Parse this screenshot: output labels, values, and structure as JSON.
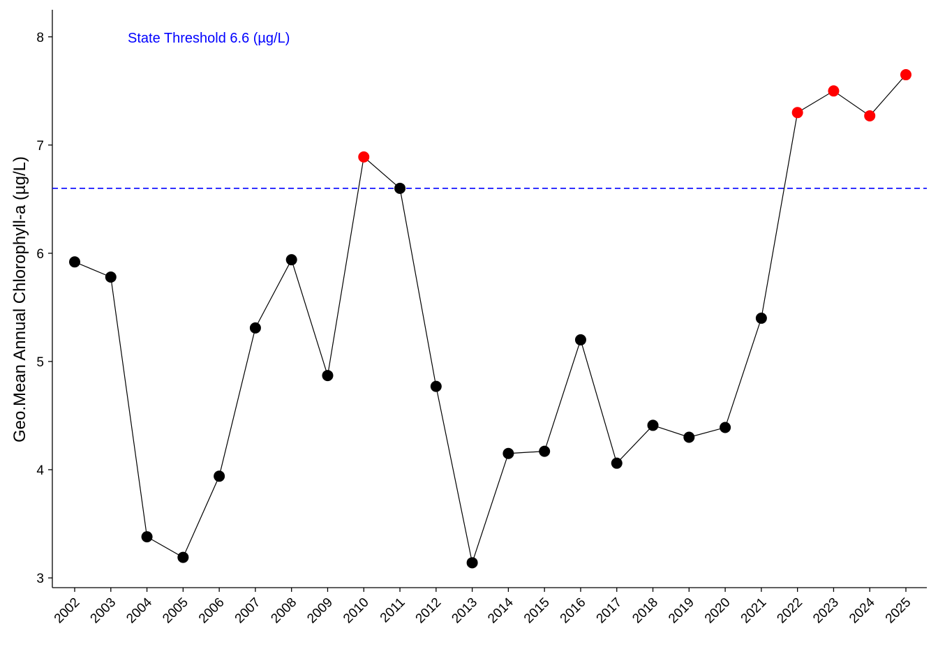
{
  "chart_data": {
    "type": "line",
    "title": "",
    "xlabel": "",
    "ylabel": "Geo.Mean Annual Chlorophyll-a (µg/L)",
    "categories": [
      "2002",
      "2003",
      "2004",
      "2005",
      "2006",
      "2007",
      "2008",
      "2009",
      "2010",
      "2011",
      "2012",
      "2013",
      "2014",
      "2015",
      "2016",
      "2017",
      "2018",
      "2019",
      "2020",
      "2021",
      "2022",
      "2023",
      "2024",
      "2025"
    ],
    "values": [
      5.92,
      5.78,
      3.38,
      3.19,
      3.94,
      5.31,
      5.94,
      4.87,
      6.89,
      6.6,
      4.77,
      3.14,
      4.15,
      4.17,
      5.2,
      4.06,
      4.41,
      4.3,
      4.39,
      5.4,
      7.3,
      7.5,
      7.27,
      7.65
    ],
    "ylim": [
      2.91,
      8.25
    ],
    "yticks": [
      3,
      4,
      5,
      6,
      7,
      8
    ],
    "grid": false,
    "threshold": {
      "value": 6.6,
      "label": "State Threshold 6.6 (µg/L)",
      "color": "#0000FF"
    },
    "colors": {
      "normal": "#000000",
      "exceed": "#FF0000",
      "line": "#000000"
    }
  }
}
